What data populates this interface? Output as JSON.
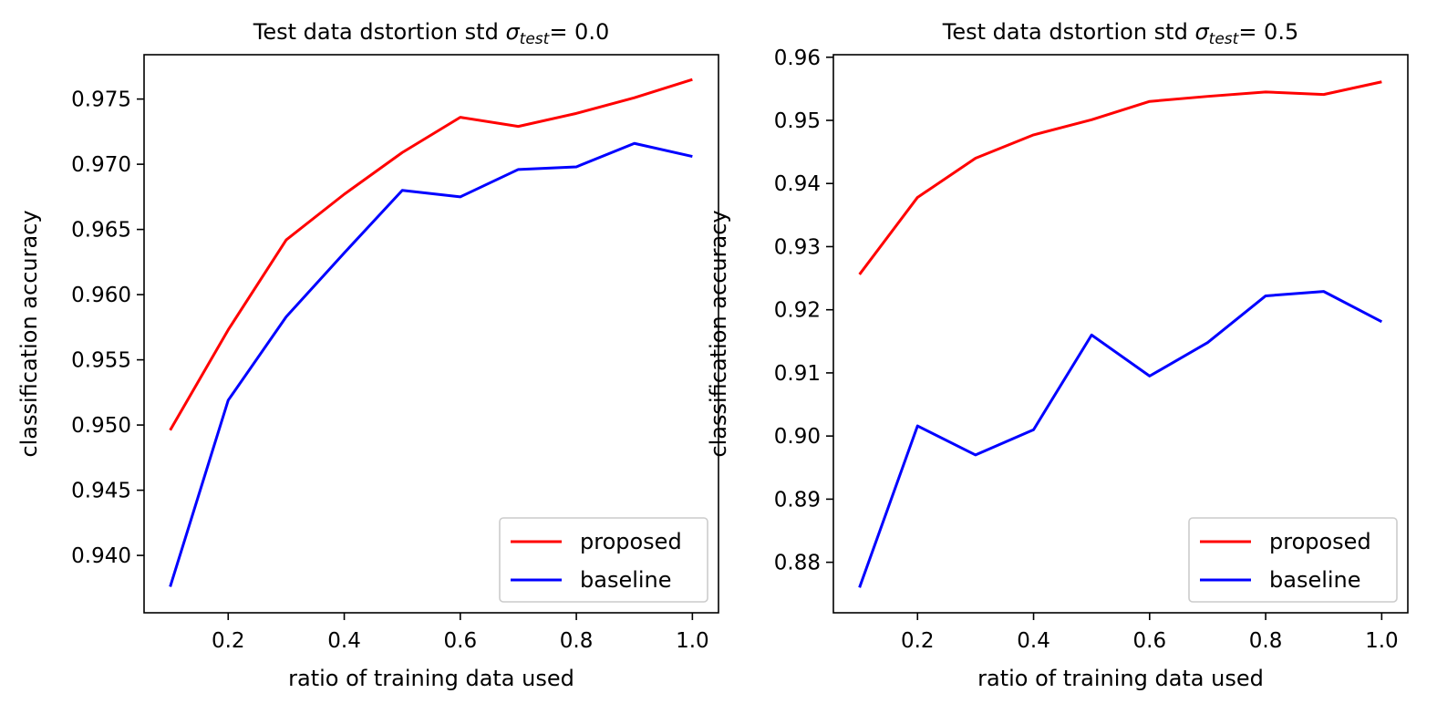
{
  "chart_data": [
    {
      "type": "line",
      "title": {
        "prefix": "Test data dstortion std ",
        "sigma": "σ",
        "sub": "test",
        "suffix": "= 0.0"
      },
      "xlabel": "ratio of training data used",
      "ylabel": "classification accuracy",
      "xlim": [
        0.055,
        1.045
      ],
      "ylim": [
        0.9356,
        0.9784
      ],
      "xticks": [
        0.2,
        0.4,
        0.6,
        0.8,
        1.0
      ],
      "xtick_labels": [
        "0.2",
        "0.4",
        "0.6",
        "0.8",
        "1.0"
      ],
      "yticks": [
        0.94,
        0.945,
        0.95,
        0.955,
        0.96,
        0.965,
        0.97,
        0.975
      ],
      "ytick_labels": [
        "0.940",
        "0.945",
        "0.950",
        "0.955",
        "0.960",
        "0.965",
        "0.970",
        "0.975"
      ],
      "legend_position": "lower-right",
      "x": [
        0.1,
        0.2,
        0.3,
        0.4,
        0.5,
        0.6,
        0.7,
        0.8,
        0.9,
        1.0
      ],
      "series": [
        {
          "name": "proposed",
          "color": "#ff0000",
          "values": [
            0.9496,
            0.9573,
            0.9642,
            0.9677,
            0.9709,
            0.9736,
            0.9729,
            0.9739,
            0.9751,
            0.9765
          ]
        },
        {
          "name": "baseline",
          "color": "#0000ff",
          "values": [
            0.9376,
            0.9519,
            0.9583,
            0.9632,
            0.968,
            0.9675,
            0.9696,
            0.9698,
            0.9716,
            0.9706
          ]
        }
      ]
    },
    {
      "type": "line",
      "title": {
        "prefix": "Test data dstortion std ",
        "sigma": "σ",
        "sub": "test",
        "suffix": "= 0.5"
      },
      "xlabel": "ratio of training data used",
      "ylabel": "classification accuracy",
      "xlim": [
        0.055,
        1.045
      ],
      "ylim": [
        0.872,
        0.9604
      ],
      "xticks": [
        0.2,
        0.4,
        0.6,
        0.8,
        1.0
      ],
      "xtick_labels": [
        "0.2",
        "0.4",
        "0.6",
        "0.8",
        "1.0"
      ],
      "yticks": [
        0.88,
        0.89,
        0.9,
        0.91,
        0.92,
        0.93,
        0.94,
        0.95,
        0.96
      ],
      "ytick_labels": [
        "0.88",
        "0.89",
        "0.90",
        "0.91",
        "0.92",
        "0.93",
        "0.94",
        "0.95",
        "0.96"
      ],
      "legend_position": "lower-right",
      "x": [
        0.1,
        0.2,
        0.3,
        0.4,
        0.5,
        0.6,
        0.7,
        0.8,
        0.9,
        1.0
      ],
      "series": [
        {
          "name": "proposed",
          "color": "#ff0000",
          "values": [
            0.9256,
            0.9378,
            0.944,
            0.9477,
            0.9501,
            0.953,
            0.9538,
            0.9545,
            0.9541,
            0.9561
          ]
        },
        {
          "name": "baseline",
          "color": "#0000ff",
          "values": [
            0.876,
            0.9016,
            0.897,
            0.901,
            0.916,
            0.9095,
            0.9148,
            0.9222,
            0.9229,
            0.9181
          ]
        }
      ]
    }
  ]
}
